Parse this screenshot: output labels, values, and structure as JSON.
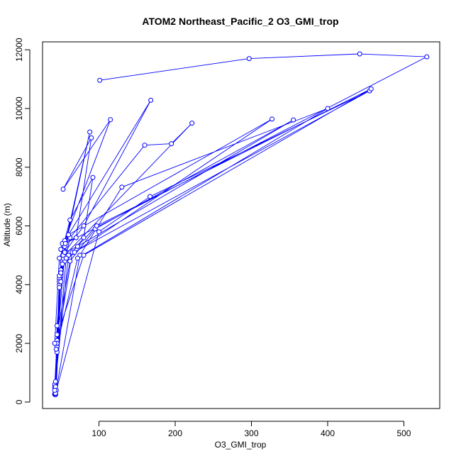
{
  "chart_data": {
    "type": "line",
    "title": "ATOM2 Northeast_Pacific_2 O3_GMI_trop",
    "xlabel": "O3_GMI_trop",
    "ylabel": "Altitude (m)",
    "xlim": [
      26,
      547
    ],
    "ylim": [
      -220,
      12270
    ],
    "x_ticks": [
      100,
      200,
      300,
      400,
      500
    ],
    "y_ticks": [
      0,
      2000,
      4000,
      6000,
      8000,
      10000,
      12000
    ],
    "x_tick_labels": [
      "100",
      "200",
      "300",
      "400",
      "500"
    ],
    "y_tick_labels": [
      "0",
      "2000",
      "4000",
      "6000",
      "8000",
      "10000",
      "12000"
    ],
    "grid": false,
    "legend": "none",
    "series_color": "#0000ff",
    "series": [
      {
        "x": [
          42,
          42,
          45,
          48,
          52,
          62,
          92,
          80,
          65,
          45,
          42,
          45,
          50,
          52,
          88,
          55,
          48,
          42,
          44,
          50,
          55,
          62,
          160,
          195,
          222,
          55,
          45,
          43,
          48,
          53,
          50,
          52,
          70,
          90,
          53,
          115,
          55,
          48,
          45,
          43,
          48,
          55,
          80,
          168,
          60,
          50,
          52,
          53,
          60,
          327,
          68,
          52,
          45,
          43,
          50,
          55,
          72,
          355,
          95,
          62,
          45,
          43,
          75,
          130,
          400,
          72,
          44,
          43,
          100,
          167,
          455,
          60,
          43,
          42,
          57,
          97,
          457,
          80,
          42,
          48,
          56,
          530,
          442,
          297,
          101
        ],
        "y": [
          260,
          600,
          2100,
          4000,
          5200,
          6200,
          7650,
          5600,
          5100,
          1900,
          500,
          1700,
          4500,
          4800,
          9200,
          5300,
          3900,
          280,
          400,
          4300,
          4800,
          5600,
          8750,
          8800,
          9500,
          5000,
          2000,
          520,
          4200,
          4900,
          5200,
          5400,
          5600,
          9000,
          7250,
          9620,
          5500,
          4300,
          2000,
          250,
          4100,
          5100,
          6000,
          10280,
          5700,
          4400,
          4700,
          5000,
          5700,
          9640,
          5100,
          4700,
          2600,
          300,
          4100,
          5100,
          5300,
          9610,
          5900,
          4800,
          2300,
          280,
          5000,
          7320,
          10000,
          4900,
          1800,
          300,
          5800,
          7000,
          10600,
          5000,
          700,
          400,
          4900,
          6000,
          10670,
          5000,
          2000,
          4900,
          5400,
          11760,
          11860,
          11700,
          10960
        ]
      }
    ]
  }
}
